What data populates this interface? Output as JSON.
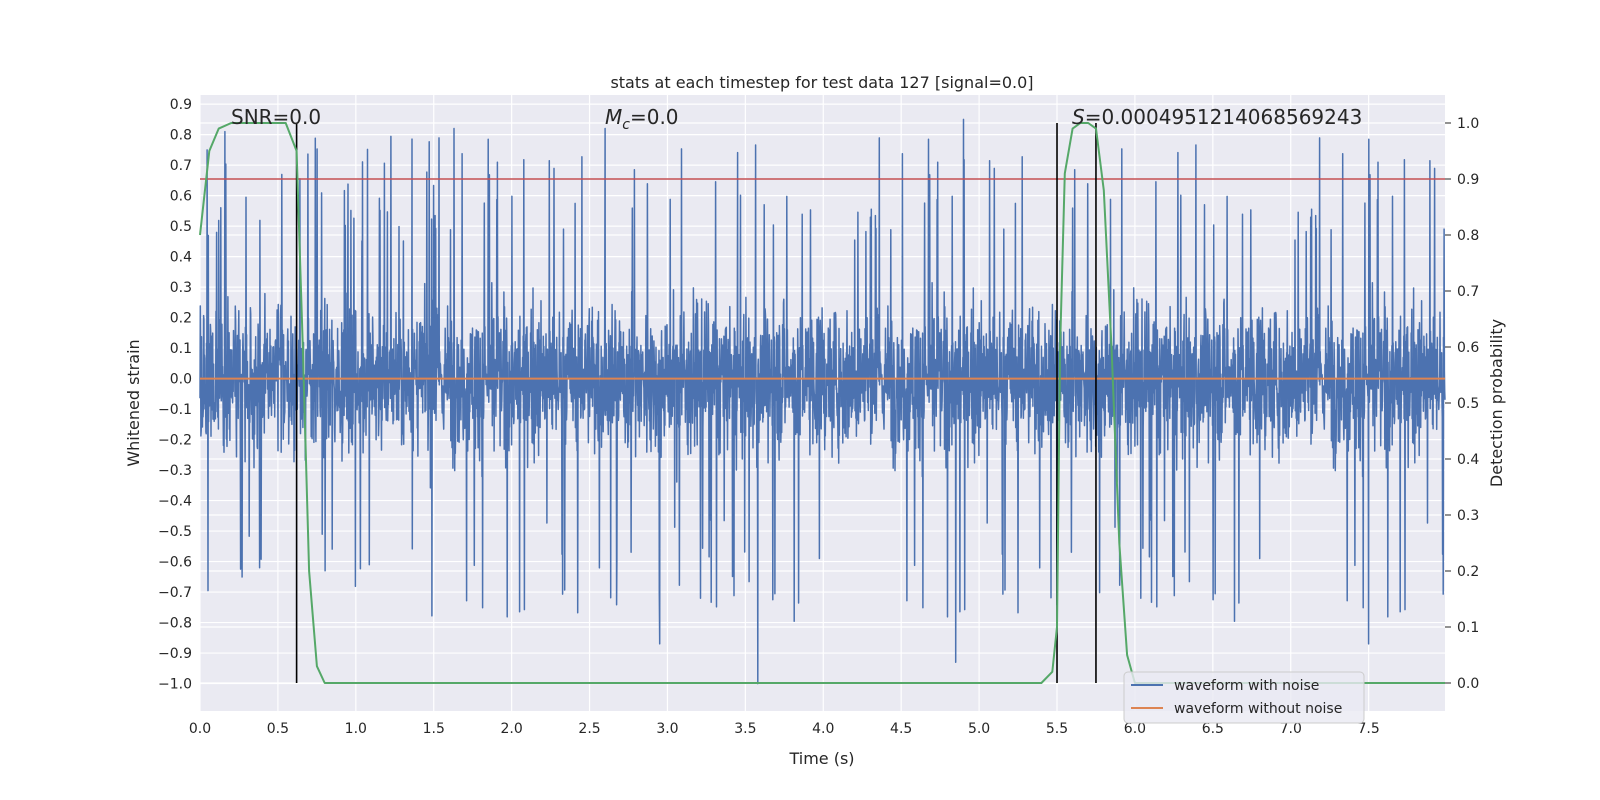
{
  "chart_data": {
    "type": "line",
    "title": "stats at each timestep for test data 127 [signal=0.0]",
    "xlabel": "Time (s)",
    "ylabel": "Whitened strain",
    "y2label": "Detection probability",
    "xlim": [
      0.0,
      7.99
    ],
    "ylim": [
      -1.09,
      0.93
    ],
    "y2lim": [
      -0.05,
      1.05
    ],
    "x_ticks": [
      "0.0",
      "0.5",
      "1.0",
      "1.5",
      "2.0",
      "2.5",
      "3.0",
      "3.5",
      "4.0",
      "4.5",
      "5.0",
      "5.5",
      "6.0",
      "6.5",
      "7.0",
      "7.5"
    ],
    "y_ticks": [
      "0.9",
      "0.8",
      "0.7",
      "0.6",
      "0.5",
      "0.4",
      "0.3",
      "0.2",
      "0.1",
      "0.0",
      "−0.1",
      "−0.2",
      "−0.3",
      "−0.4",
      "−0.5",
      "−0.6",
      "−0.7",
      "−0.8",
      "−0.9",
      "−1.0"
    ],
    "y2_ticks": [
      "1.0",
      "0.9",
      "0.8",
      "0.7",
      "0.6",
      "0.5",
      "0.4",
      "0.3",
      "0.2",
      "0.1",
      "0.0"
    ],
    "annotations": {
      "snr": "SNR=0.0",
      "mc_symbol": "M",
      "mc_sub": "c",
      "mc_value": "=0.0",
      "s_symbol": "S",
      "s_value": "=0.0004951214068569243"
    },
    "threshold_y2": 0.9,
    "vertical_lines_x": [
      0.62,
      5.5,
      5.75
    ],
    "series": [
      {
        "name": "waveform with noise",
        "color": "#4c72b0",
        "description": "noisy whitened strain sampled at 2048 Hz, amplitude roughly within [-1.0, 0.85]",
        "notable_extrema": [
          {
            "x": 0.16,
            "y": 0.81
          },
          {
            "x": 1.63,
            "y": 0.82
          },
          {
            "x": 2.6,
            "y": 0.82
          },
          {
            "x": 4.9,
            "y": 0.85
          },
          {
            "x": 3.58,
            "y": -1.0
          },
          {
            "x": 2.95,
            "y": -0.87
          },
          {
            "x": 4.85,
            "y": -0.93
          },
          {
            "x": 7.5,
            "y": -0.87
          }
        ]
      },
      {
        "name": "waveform without noise",
        "color": "#dd8452",
        "x": [
          0.0,
          7.99
        ],
        "y": [
          0.0,
          0.0
        ]
      },
      {
        "name": "detection probability",
        "axis": "right",
        "color": "#55a868",
        "x": [
          0.0,
          0.06,
          0.12,
          0.2,
          0.3,
          0.4,
          0.5,
          0.55,
          0.62,
          0.66,
          0.7,
          0.75,
          0.8,
          0.9,
          1.5,
          3.0,
          4.5,
          5.4,
          5.47,
          5.5,
          5.52,
          5.55,
          5.6,
          5.65,
          5.7,
          5.75,
          5.8,
          5.85,
          5.9,
          5.95,
          6.0,
          6.5,
          7.0,
          7.5,
          7.99
        ],
        "y": [
          0.8,
          0.95,
          0.99,
          1.0,
          1.0,
          1.0,
          1.0,
          1.0,
          0.95,
          0.6,
          0.2,
          0.03,
          0.0,
          0.0,
          0.0,
          0.0,
          0.0,
          0.0,
          0.02,
          0.1,
          0.6,
          0.91,
          0.99,
          1.0,
          1.0,
          0.99,
          0.88,
          0.6,
          0.25,
          0.05,
          0.0,
          0.0,
          0.0,
          0.0,
          0.0
        ]
      }
    ],
    "legend": {
      "position": "lower-right",
      "entries": [
        {
          "label": "waveform with noise",
          "color": "#4c72b0"
        },
        {
          "label": "waveform without noise",
          "color": "#dd8452"
        }
      ]
    }
  }
}
